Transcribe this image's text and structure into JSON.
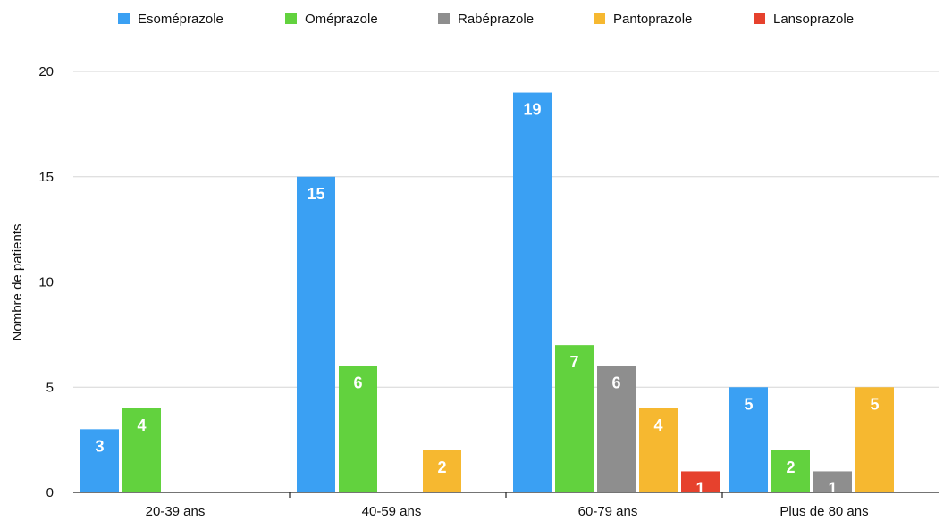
{
  "chart_data": {
    "type": "bar",
    "title": "",
    "xlabel": "",
    "ylabel": "Nombre de patients",
    "ylim": [
      0,
      20
    ],
    "yticks": [
      0,
      5,
      10,
      15,
      20
    ],
    "grid": true,
    "legend_position": "top",
    "categories": [
      "20-39 ans",
      "40-59 ans",
      "60-79 ans",
      "Plus de 80 ans"
    ],
    "series": [
      {
        "name": "Esoméprazole",
        "color": "#3aa0f3",
        "values": [
          3,
          15,
          19,
          5
        ]
      },
      {
        "name": "Oméprazole",
        "color": "#62d23e",
        "values": [
          4,
          6,
          7,
          2
        ]
      },
      {
        "name": "Rabéprazole",
        "color": "#8e8e8e",
        "values": [
          0,
          0,
          6,
          1
        ]
      },
      {
        "name": "Pantoprazole",
        "color": "#f6b830",
        "values": [
          0,
          2,
          4,
          5
        ]
      },
      {
        "name": "Lansoprazole",
        "color": "#e6412d",
        "values": [
          0,
          0,
          1,
          0
        ]
      }
    ]
  }
}
